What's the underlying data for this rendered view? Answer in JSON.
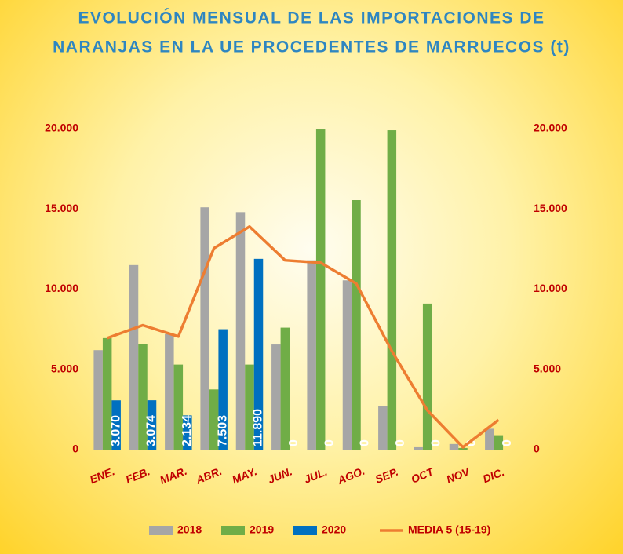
{
  "chart_data": {
    "type": "bar",
    "title": [
      "EVOLUCIÓN MENSUAL DE LAS IMPORTACIONES DE",
      "NARANJAS EN LA UE PROCEDENTES DE MARRUECOS (t)"
    ],
    "categories": [
      "ENE.",
      "FEB.",
      "MAR.",
      "ABR.",
      "MAY.",
      "JUN.",
      "JUL.",
      "AGO.",
      "SEP.",
      "OCT",
      "NOV",
      "DIC."
    ],
    "series": [
      {
        "name": "2018",
        "type": "bar",
        "color": "#a6a6a6",
        "values": [
          6200,
          11500,
          7200,
          15100,
          14800,
          6550,
          11800,
          10550,
          2700,
          150,
          350,
          1300
        ]
      },
      {
        "name": "2019",
        "type": "bar",
        "color": "#70ad47",
        "values": [
          6950,
          6600,
          5300,
          3750,
          5300,
          7600,
          19950,
          15550,
          19900,
          9100,
          100,
          900
        ]
      },
      {
        "name": "2020",
        "type": "bar",
        "color": "#0070c0",
        "values": [
          3070,
          3074,
          2134,
          7503,
          11890,
          0,
          0,
          0,
          0,
          0,
          0,
          0
        ],
        "value_labels": [
          "3.070",
          "3.074",
          "2.134",
          "7.503",
          "11.890",
          "0",
          "0",
          "0",
          "0",
          "0",
          "0",
          "0"
        ]
      },
      {
        "name": "MEDIA 5 (15-19)",
        "type": "line",
        "axis": "y2",
        "color": "#ed7d31",
        "values": [
          6950,
          7750,
          7050,
          12550,
          13900,
          11800,
          11650,
          10350,
          6150,
          2450,
          150,
          1850
        ]
      }
    ],
    "ylim": [
      0,
      20000
    ],
    "yticks": [
      0,
      {
        "value": 5000,
        "label": "5.000"
      },
      {
        "value": 10000,
        "label": "10.000"
      },
      {
        "value": 15000,
        "label": "15.000"
      },
      {
        "value": 20000,
        "label": "20.000"
      }
    ],
    "y2lim": [
      0,
      20000
    ],
    "y2ticks": [
      0,
      {
        "value": 5000,
        "label": "5.000"
      },
      {
        "value": 10000,
        "label": "10.000"
      },
      {
        "value": 15000,
        "label": "15.000"
      },
      {
        "value": 20000,
        "label": "20.000"
      }
    ],
    "grid": false,
    "legend": "bottom"
  }
}
